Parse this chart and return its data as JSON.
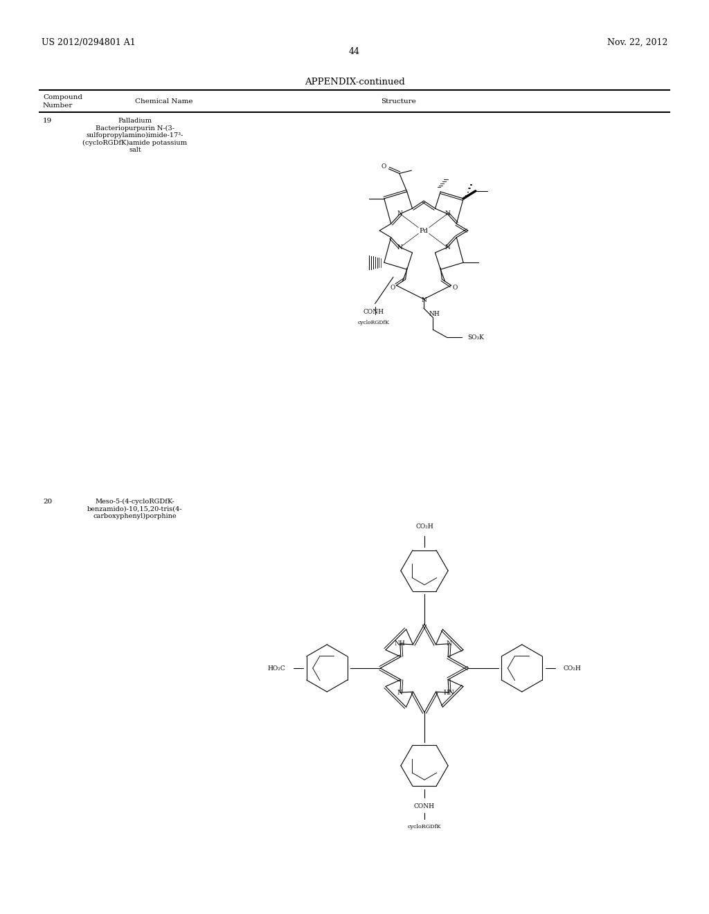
{
  "page_number": "44",
  "left_header": "US 2012/0294801 A1",
  "right_header": "Nov. 22, 2012",
  "appendix_title": "APPENDIX-continued",
  "compound19_number": "19",
  "compound19_name": "Palladium\nBacteriopurpurin N-(3-\nsulfopropylamino)imide-17³-\n(cycloRGDfK)amide potassium\nsalt",
  "compound20_number": "20",
  "compound20_name": "Meso-5-(4-cycloRGDfK-\nbenzamido)-10,15,20-tris(4-\ncarboxyphenyl)porphine",
  "bg_color": "#ffffff",
  "text_color": "#000000",
  "line_color": "#000000"
}
